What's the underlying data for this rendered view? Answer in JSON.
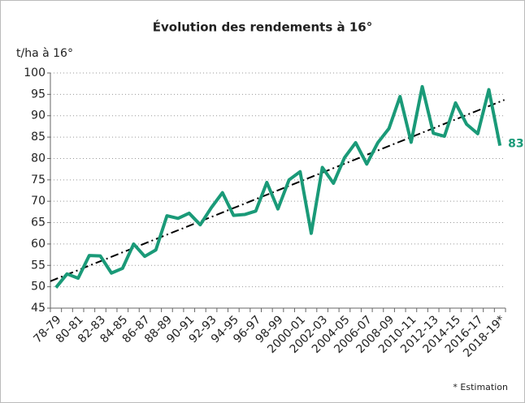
{
  "chart_data": {
    "type": "line",
    "title": "Évolution des rendements à 16°",
    "y_axis_label": "t/ha à 16°",
    "note": "* Estimation",
    "categories": [
      "78-79",
      null,
      "80-81",
      null,
      "82-83",
      null,
      "84-85",
      null,
      "86-87",
      null,
      "88-89",
      null,
      "90-91",
      null,
      "92-93",
      null,
      "94-95",
      null,
      "96-97",
      null,
      "98-99",
      null,
      "2000-01",
      null,
      "2002-03",
      null,
      "2004-05",
      null,
      "2006-07",
      null,
      "2008-09",
      null,
      "2010-11",
      null,
      "2012-13",
      null,
      "2014-15",
      null,
      "2016-17",
      null,
      "2018-19*"
    ],
    "series": [
      {
        "color": "#1a9a78",
        "values": [
          49.8,
          53,
          52,
          57.3,
          57.2,
          53.2,
          54.3,
          60,
          57.1,
          58.6,
          66.6,
          66,
          67.2,
          64.5,
          68.5,
          72,
          66.7,
          66.9,
          67.7,
          74.4,
          68.2,
          75,
          76.9,
          62.5,
          77.9,
          74.2,
          80.2,
          83.7,
          78.7,
          83.7,
          87,
          94.5,
          83.8,
          96.8,
          85.9,
          85.2,
          93,
          88,
          85.8,
          96.1,
          83
        ],
        "value_labels": [
          null,
          null,
          null,
          null,
          null,
          null,
          null,
          null,
          null,
          null,
          null,
          null,
          null,
          null,
          null,
          null,
          null,
          null,
          null,
          null,
          null,
          null,
          null,
          null,
          null,
          null,
          null,
          null,
          null,
          null,
          null,
          null,
          null,
          null,
          null,
          null,
          null,
          null,
          null,
          null,
          "83"
        ]
      }
    ],
    "trendline": {
      "color": "#000000",
      "start": 51.3,
      "end": 93.7
    },
    "ylim": [
      45,
      100
    ],
    "yticks": [
      45,
      50,
      55,
      60,
      65,
      70,
      75,
      80,
      85,
      90,
      95,
      100
    ],
    "grid": true
  }
}
